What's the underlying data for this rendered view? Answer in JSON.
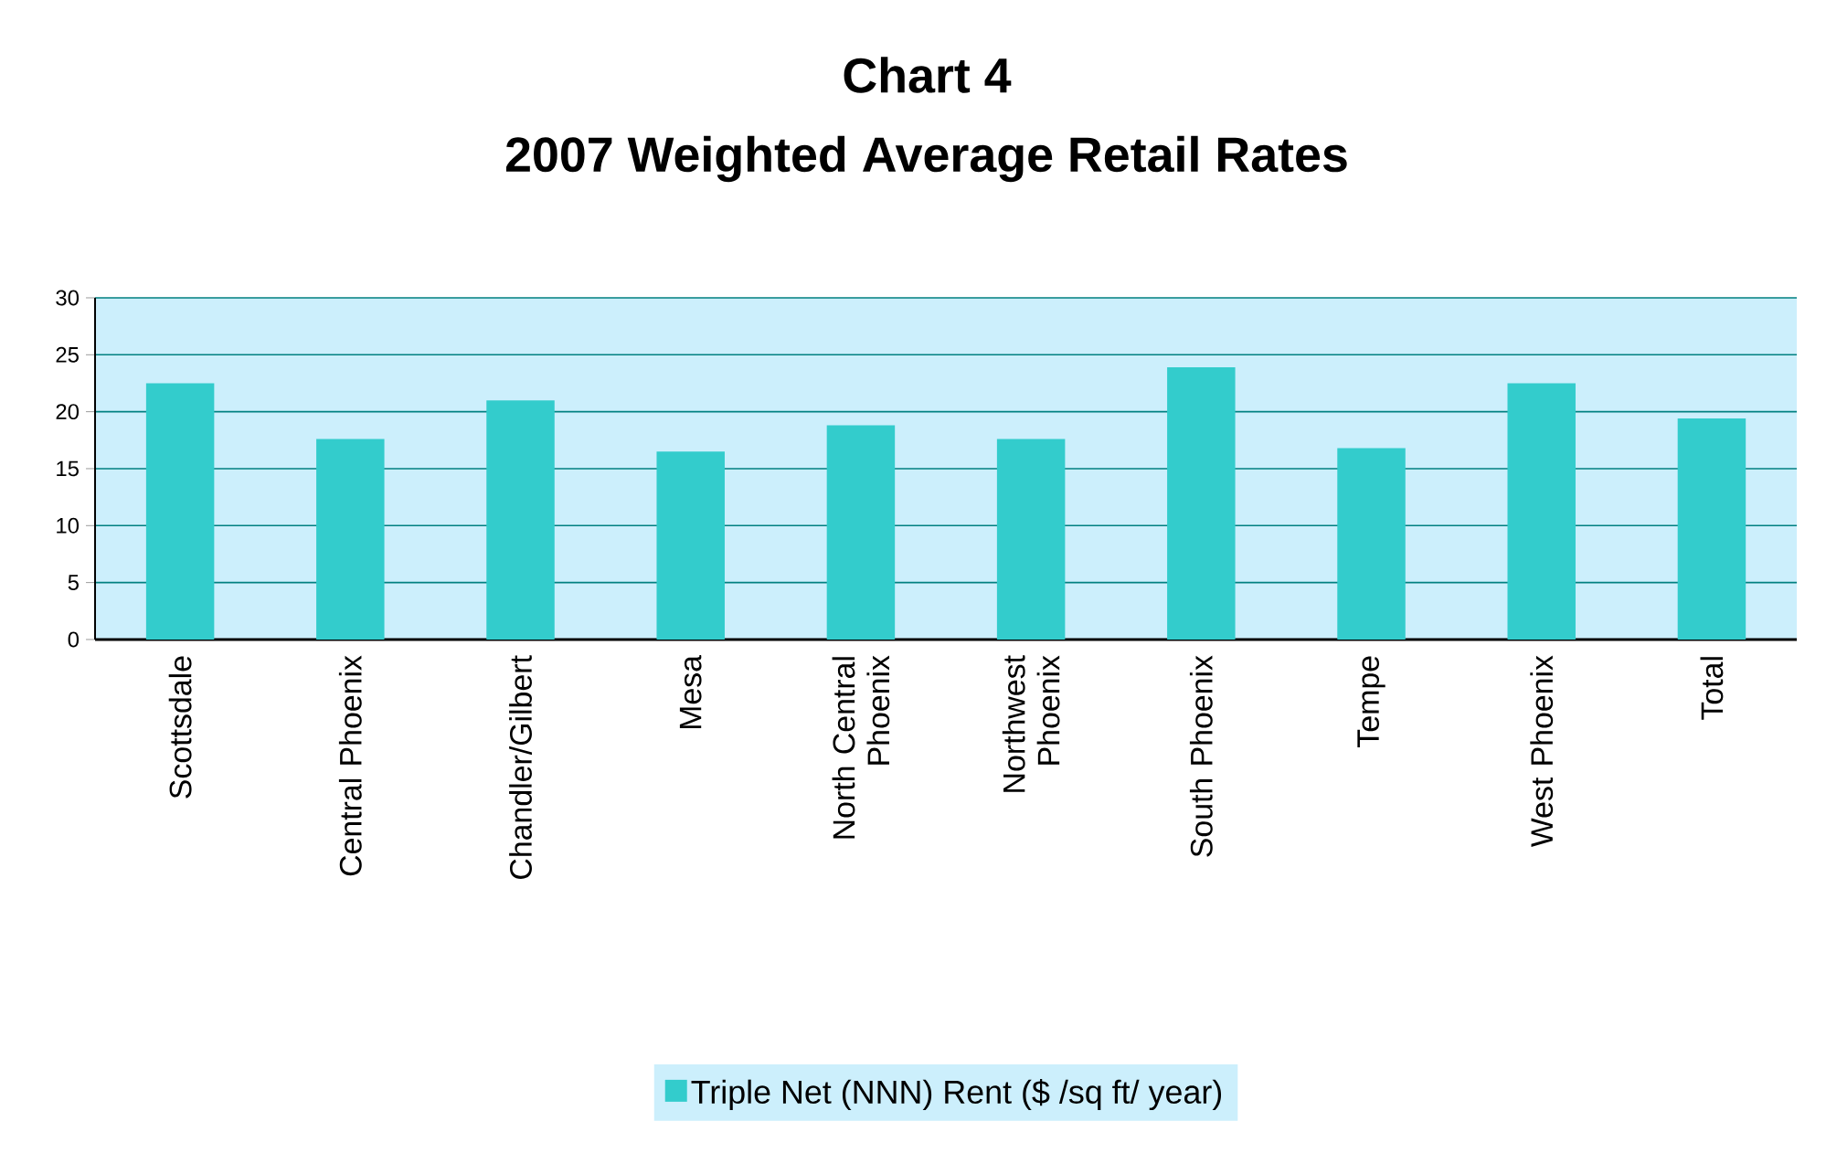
{
  "chart_data": {
    "type": "bar",
    "title": "Chart 4",
    "subtitle": "2007 Weighted Average Retail Rates",
    "categories": [
      "Scottsdale",
      "Central Phoenix",
      "Chandler/Gilbert",
      "Mesa",
      "North Central Phoenix",
      "Northwest Phoenix",
      "South Phoenix",
      "Tempe",
      "West Phoenix",
      "Total"
    ],
    "series": [
      {
        "name": "Triple Net (NNN) Rent ($ /sq ft/ year)",
        "color": "#33cccc",
        "values": [
          22.5,
          17.6,
          21.0,
          16.5,
          18.8,
          17.6,
          23.9,
          16.8,
          22.5,
          19.4
        ]
      }
    ],
    "ylim": [
      0,
      30
    ],
    "yticks": [
      0,
      5,
      10,
      15,
      20,
      25,
      30
    ],
    "grid": "y",
    "legend": "bottom"
  }
}
